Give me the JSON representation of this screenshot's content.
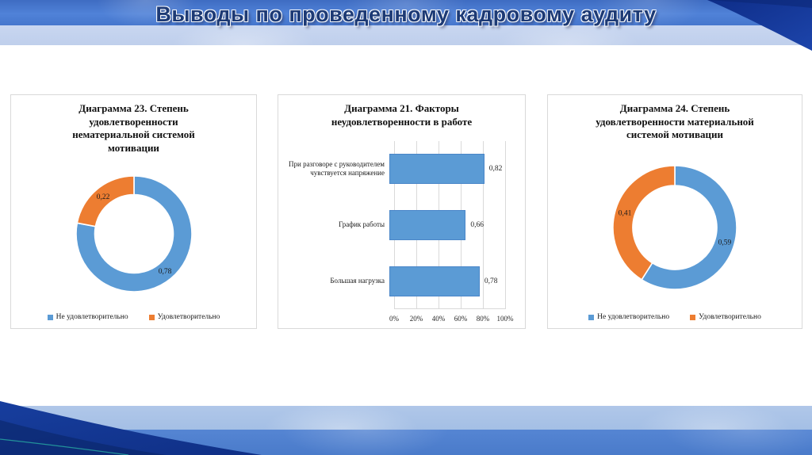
{
  "slide": {
    "title": "Выводы по проведенному кадровому аудиту"
  },
  "theme": {
    "chart_blue": "#5B9BD5",
    "chart_orange": "#ED7D31",
    "bar_border": "#4a86c8",
    "card_border": "#d9d9d9",
    "grid_color": "#d9d9d9",
    "header_blue": "#4a7bd0",
    "header_light_band": "#c3d2ee",
    "footer_light_band": "#a9c2e7",
    "footer_blue_band": "#4f80ce",
    "corner_navy": "#10307f",
    "title_color": "#1d3a75"
  },
  "chart_data": [
    {
      "id": "diagram23",
      "type": "pie",
      "subtype": "donut",
      "title": "Диаграмма 23. Степень удовлетворенности нематериальной системой мотивации",
      "legend_position": "bottom",
      "series": [
        {
          "name": "Не удовлетворительно",
          "value": 0.78,
          "label": "0,78",
          "color": "#5B9BD5"
        },
        {
          "name": "Удовлетворительно",
          "value": 0.22,
          "label": "0,22",
          "color": "#ED7D31"
        }
      ]
    },
    {
      "id": "diagram21",
      "type": "bar",
      "orientation": "horizontal",
      "title": "Диаграмма 21. Факторы неудовлетворенности в работе",
      "categories": [
        "При разговоре с руководителем чувствуется напряжение",
        "График работы",
        "Большая нагрузка"
      ],
      "values": [
        0.82,
        0.66,
        0.78
      ],
      "value_labels": [
        "0,82",
        "0,66",
        "0,78"
      ],
      "bar_color": "#5B9BD5",
      "xlim": [
        0,
        1
      ],
      "xtick_labels": [
        "0%",
        "20%",
        "40%",
        "60%",
        "80%",
        "100%"
      ],
      "grid": true,
      "legend_position": "none"
    },
    {
      "id": "diagram24",
      "type": "pie",
      "subtype": "donut",
      "title": "Диаграмма 24. Степень удовлетворенности материальной системой мотивации",
      "legend_position": "bottom",
      "series": [
        {
          "name": "Не удовлетворительно",
          "value": 0.59,
          "label": "0,59",
          "color": "#5B9BD5"
        },
        {
          "name": "Удовлетворительно",
          "value": 0.41,
          "label": "0,41",
          "color": "#ED7D31"
        }
      ]
    }
  ]
}
